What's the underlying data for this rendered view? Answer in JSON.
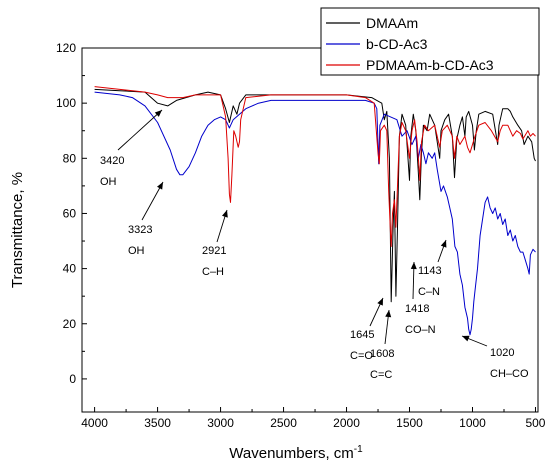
{
  "chart_data": {
    "type": "line",
    "title": "",
    "xlabel": "Wavenumbers, cm",
    "xlabel_sup": "-1",
    "ylabel": "Transmittance, %",
    "xlim": [
      4100,
      480
    ],
    "ylim": [
      -12,
      120
    ],
    "x_reversed": true,
    "x_ticks": [
      4000,
      3500,
      3000,
      2500,
      2000,
      1500,
      1000,
      500
    ],
    "y_ticks": [
      0,
      20,
      40,
      60,
      80,
      100,
      120
    ],
    "grid": false,
    "legend": "top-right",
    "series": [
      {
        "name": "DMAAm",
        "color": "#000000",
        "points": [
          [
            4000,
            105
          ],
          [
            3800,
            104.5
          ],
          [
            3600,
            104
          ],
          [
            3500,
            100
          ],
          [
            3420,
            99
          ],
          [
            3350,
            101
          ],
          [
            3200,
            103
          ],
          [
            3100,
            104
          ],
          [
            3000,
            103
          ],
          [
            2960,
            98
          ],
          [
            2930,
            93
          ],
          [
            2900,
            99
          ],
          [
            2870,
            96
          ],
          [
            2850,
            100
          ],
          [
            2800,
            103
          ],
          [
            2600,
            103
          ],
          [
            2400,
            103
          ],
          [
            2200,
            103
          ],
          [
            2000,
            103
          ],
          [
            1800,
            102
          ],
          [
            1760,
            101
          ],
          [
            1720,
            100
          ],
          [
            1700,
            94
          ],
          [
            1680,
            97
          ],
          [
            1660,
            80
          ],
          [
            1645,
            28
          ],
          [
            1630,
            55
          ],
          [
            1620,
            68
          ],
          [
            1608,
            30
          ],
          [
            1595,
            55
          ],
          [
            1580,
            88
          ],
          [
            1560,
            96
          ],
          [
            1530,
            92
          ],
          [
            1500,
            72
          ],
          [
            1490,
            88
          ],
          [
            1470,
            96
          ],
          [
            1450,
            90
          ],
          [
            1430,
            75
          ],
          [
            1418,
            65
          ],
          [
            1405,
            82
          ],
          [
            1390,
            92
          ],
          [
            1360,
            90
          ],
          [
            1340,
            96
          ],
          [
            1300,
            92
          ],
          [
            1260,
            80
          ],
          [
            1250,
            90
          ],
          [
            1220,
            94
          ],
          [
            1190,
            96
          ],
          [
            1160,
            88
          ],
          [
            1143,
            73
          ],
          [
            1125,
            87
          ],
          [
            1100,
            92
          ],
          [
            1080,
            95
          ],
          [
            1060,
            88
          ],
          [
            1050,
            95
          ],
          [
            1030,
            97
          ],
          [
            1000,
            92
          ],
          [
            985,
            83
          ],
          [
            970,
            90
          ],
          [
            950,
            96
          ],
          [
            900,
            97
          ],
          [
            840,
            96
          ],
          [
            800,
            85
          ],
          [
            790,
            92
          ],
          [
            760,
            98
          ],
          [
            720,
            98
          ],
          [
            700,
            97
          ],
          [
            680,
            95
          ],
          [
            640,
            92
          ],
          [
            610,
            90
          ],
          [
            590,
            85
          ],
          [
            560,
            88
          ],
          [
            530,
            86
          ],
          [
            510,
            80
          ],
          [
            500,
            79
          ]
        ]
      },
      {
        "name": "b-CD-Ac3",
        "color": "#0000cc",
        "points": [
          [
            4000,
            104
          ],
          [
            3800,
            103
          ],
          [
            3700,
            102
          ],
          [
            3600,
            99
          ],
          [
            3500,
            93
          ],
          [
            3400,
            83
          ],
          [
            3350,
            76
          ],
          [
            3323,
            74
          ],
          [
            3300,
            74
          ],
          [
            3250,
            77
          ],
          [
            3200,
            82
          ],
          [
            3150,
            88
          ],
          [
            3100,
            92
          ],
          [
            3050,
            94
          ],
          [
            3000,
            95
          ],
          [
            2960,
            94
          ],
          [
            2930,
            91
          ],
          [
            2900,
            94
          ],
          [
            2850,
            96
          ],
          [
            2800,
            98
          ],
          [
            2700,
            100
          ],
          [
            2600,
            101
          ],
          [
            2400,
            101
          ],
          [
            2200,
            101
          ],
          [
            2000,
            101
          ],
          [
            1850,
            101
          ],
          [
            1780,
            100
          ],
          [
            1760,
            98
          ],
          [
            1745,
            78
          ],
          [
            1735,
            92
          ],
          [
            1700,
            96
          ],
          [
            1650,
            95
          ],
          [
            1600,
            94
          ],
          [
            1560,
            88
          ],
          [
            1520,
            90
          ],
          [
            1480,
            85
          ],
          [
            1450,
            88
          ],
          [
            1430,
            80
          ],
          [
            1410,
            85
          ],
          [
            1390,
            82
          ],
          [
            1370,
            78
          ],
          [
            1350,
            82
          ],
          [
            1320,
            80
          ],
          [
            1300,
            82
          ],
          [
            1280,
            76
          ],
          [
            1250,
            68
          ],
          [
            1230,
            70
          ],
          [
            1200,
            66
          ],
          [
            1180,
            62
          ],
          [
            1160,
            58
          ],
          [
            1140,
            48
          ],
          [
            1120,
            46
          ],
          [
            1100,
            38
          ],
          [
            1080,
            34
          ],
          [
            1060,
            26
          ],
          [
            1040,
            22
          ],
          [
            1030,
            18
          ],
          [
            1020,
            16
          ],
          [
            1010,
            18
          ],
          [
            1000,
            22
          ],
          [
            990,
            28
          ],
          [
            980,
            32
          ],
          [
            960,
            40
          ],
          [
            940,
            52
          ],
          [
            920,
            58
          ],
          [
            900,
            64
          ],
          [
            880,
            66
          ],
          [
            860,
            62
          ],
          [
            840,
            60
          ],
          [
            820,
            62
          ],
          [
            800,
            58
          ],
          [
            780,
            60
          ],
          [
            760,
            56
          ],
          [
            740,
            58
          ],
          [
            720,
            52
          ],
          [
            700,
            54
          ],
          [
            680,
            50
          ],
          [
            660,
            52
          ],
          [
            640,
            48
          ],
          [
            620,
            46
          ],
          [
            600,
            46
          ],
          [
            580,
            43
          ],
          [
            560,
            40
          ],
          [
            550,
            38
          ],
          [
            540,
            45
          ],
          [
            520,
            47
          ],
          [
            500,
            46
          ]
        ]
      },
      {
        "name": "PDMAAm-b-CD-Ac3",
        "color": "#dd0000",
        "points": [
          [
            4000,
            106
          ],
          [
            3800,
            105
          ],
          [
            3600,
            104
          ],
          [
            3500,
            103
          ],
          [
            3420,
            102
          ],
          [
            3300,
            102
          ],
          [
            3200,
            103
          ],
          [
            3000,
            103
          ],
          [
            2960,
            95
          ],
          [
            2940,
            80
          ],
          [
            2930,
            67
          ],
          [
            2921,
            64
          ],
          [
            2910,
            74
          ],
          [
            2895,
            90
          ],
          [
            2880,
            88
          ],
          [
            2860,
            84
          ],
          [
            2850,
            86
          ],
          [
            2840,
            94
          ],
          [
            2800,
            102
          ],
          [
            2600,
            103
          ],
          [
            2400,
            103
          ],
          [
            2200,
            103
          ],
          [
            2000,
            103
          ],
          [
            1850,
            102
          ],
          [
            1780,
            100
          ],
          [
            1750,
            82
          ],
          [
            1740,
            78
          ],
          [
            1730,
            90
          ],
          [
            1700,
            92
          ],
          [
            1680,
            90
          ],
          [
            1665,
            68
          ],
          [
            1650,
            52
          ],
          [
            1645,
            48
          ],
          [
            1635,
            60
          ],
          [
            1620,
            65
          ],
          [
            1608,
            55
          ],
          [
            1595,
            70
          ],
          [
            1580,
            88
          ],
          [
            1560,
            93
          ],
          [
            1530,
            90
          ],
          [
            1500,
            80
          ],
          [
            1480,
            90
          ],
          [
            1460,
            94
          ],
          [
            1440,
            86
          ],
          [
            1420,
            74
          ],
          [
            1418,
            72
          ],
          [
            1405,
            86
          ],
          [
            1380,
            92
          ],
          [
            1350,
            90
          ],
          [
            1300,
            92
          ],
          [
            1260,
            84
          ],
          [
            1240,
            90
          ],
          [
            1200,
            92
          ],
          [
            1160,
            88
          ],
          [
            1143,
            80
          ],
          [
            1125,
            88
          ],
          [
            1100,
            85
          ],
          [
            1060,
            88
          ],
          [
            1040,
            84
          ],
          [
            1020,
            82
          ],
          [
            1000,
            85
          ],
          [
            980,
            88
          ],
          [
            950,
            92
          ],
          [
            900,
            93
          ],
          [
            850,
            90
          ],
          [
            800,
            86
          ],
          [
            780,
            90
          ],
          [
            760,
            92
          ],
          [
            720,
            92
          ],
          [
            680,
            88
          ],
          [
            650,
            90
          ],
          [
            620,
            89
          ],
          [
            600,
            87
          ],
          [
            560,
            90
          ],
          [
            540,
            88
          ],
          [
            520,
            89
          ],
          [
            500,
            88
          ]
        ]
      }
    ],
    "annotations": [
      {
        "id": "3420",
        "lines": [
          "3420",
          "OH"
        ]
      },
      {
        "id": "3323",
        "lines": [
          "3323",
          "OH"
        ]
      },
      {
        "id": "2921",
        "lines": [
          "2921",
          "C–H"
        ]
      },
      {
        "id": "1645",
        "lines": [
          "1645",
          "C=O"
        ]
      },
      {
        "id": "1608",
        "lines": [
          "1608",
          "C=C"
        ]
      },
      {
        "id": "1418",
        "lines": [
          "1418",
          "CO–N"
        ]
      },
      {
        "id": "1143",
        "lines": [
          "1143",
          "C–N"
        ]
      },
      {
        "id": "1020",
        "lines": [
          "1020",
          "CH–CO"
        ]
      }
    ]
  }
}
